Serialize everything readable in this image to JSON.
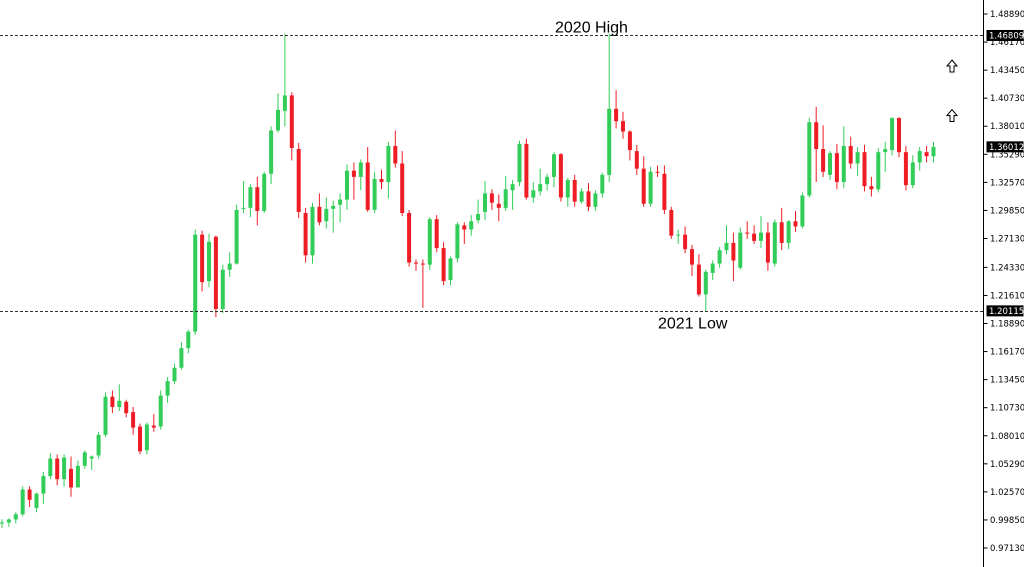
{
  "chart_data": {
    "type": "candlestick",
    "title": "",
    "xlabel": "",
    "ylabel": "",
    "ylim": [
      0.9713,
      1.4889
    ],
    "grid": false,
    "legend": "none",
    "y_ticks": [
      "1.48890",
      "1.46170",
      "1.43450",
      "1.40730",
      "1.38010",
      "1.35290",
      "1.32570",
      "1.29850",
      "1.27130",
      "1.24330",
      "1.21610",
      "1.18890",
      "1.16170",
      "1.13450",
      "1.10730",
      "1.08010",
      "1.05290",
      "1.02570",
      "0.99850",
      "0.97130"
    ],
    "price_tags": [
      {
        "label": "1.46809",
        "value": 1.46809,
        "kind": "level"
      },
      {
        "label": "1.20115",
        "value": 1.20115,
        "kind": "level"
      },
      {
        "label": "1.36012",
        "value": 1.36012,
        "kind": "current"
      }
    ],
    "levels": [
      {
        "value": 1.46809,
        "label": "2020 High",
        "label_position": "above"
      },
      {
        "value": 1.20115,
        "label": "2021 Low",
        "label_position": "below"
      }
    ],
    "markers": [
      {
        "type": "up-arrow",
        "value": 1.4385
      },
      {
        "type": "up-arrow",
        "value": 1.3905
      }
    ],
    "colors": {
      "up": "#32cd58",
      "down": "#ee1c25",
      "level_line": "#333333",
      "axis": "#000000"
    },
    "candles": [
      [
        0.995,
        0.999,
        0.991,
        0.996
      ],
      [
        0.996,
        1.0,
        0.992,
        0.999
      ],
      [
        0.999,
        1.006,
        0.995,
        1.004
      ],
      [
        1.004,
        1.031,
        1.002,
        1.028
      ],
      [
        1.028,
        1.031,
        1.011,
        1.018
      ],
      [
        1.01,
        1.025,
        1.006,
        1.024
      ],
      [
        1.024,
        1.045,
        1.014,
        1.041
      ],
      [
        1.041,
        1.063,
        1.038,
        1.058
      ],
      [
        1.058,
        1.062,
        1.032,
        1.038
      ],
      [
        1.038,
        1.062,
        1.031,
        1.059
      ],
      [
        1.048,
        1.06,
        1.021,
        1.03
      ],
      [
        1.03,
        1.056,
        1.03,
        1.051
      ],
      [
        1.051,
        1.066,
        1.048,
        1.064
      ],
      [
        1.058,
        1.061,
        1.047,
        1.06
      ],
      [
        1.061,
        1.084,
        1.058,
        1.081
      ],
      [
        1.081,
        1.122,
        1.079,
        1.118
      ],
      [
        1.118,
        1.124,
        1.102,
        1.108
      ],
      [
        1.108,
        1.13,
        1.104,
        1.114
      ],
      [
        1.113,
        1.115,
        1.098,
        1.102
      ],
      [
        1.103,
        1.108,
        1.081,
        1.088
      ],
      [
        1.089,
        1.092,
        1.062,
        1.065
      ],
      [
        1.066,
        1.093,
        1.062,
        1.091
      ],
      [
        1.09,
        1.101,
        1.084,
        1.088
      ],
      [
        1.089,
        1.124,
        1.086,
        1.119
      ],
      [
        1.119,
        1.137,
        1.112,
        1.133
      ],
      [
        1.133,
        1.15,
        1.13,
        1.146
      ],
      [
        1.146,
        1.171,
        1.144,
        1.165
      ],
      [
        1.165,
        1.183,
        1.16,
        1.181
      ],
      [
        1.181,
        1.28,
        1.178,
        1.275
      ],
      [
        1.275,
        1.279,
        1.22,
        1.229
      ],
      [
        1.23,
        1.276,
        1.224,
        1.268
      ],
      [
        1.273,
        1.274,
        1.195,
        1.203
      ],
      [
        1.203,
        1.246,
        1.199,
        1.241
      ],
      [
        1.241,
        1.258,
        1.234,
        1.247
      ],
      [
        1.247,
        1.304,
        1.246,
        1.299
      ],
      [
        1.3,
        1.327,
        1.296,
        1.301
      ],
      [
        1.301,
        1.324,
        1.292,
        1.321
      ],
      [
        1.321,
        1.331,
        1.284,
        1.298
      ],
      [
        1.298,
        1.336,
        1.296,
        1.334
      ],
      [
        1.334,
        1.38,
        1.324,
        1.376
      ],
      [
        1.376,
        1.412,
        1.374,
        1.396
      ],
      [
        1.395,
        1.47,
        1.38,
        1.41
      ],
      [
        1.41,
        1.413,
        1.347,
        1.359
      ],
      [
        1.358,
        1.364,
        1.291,
        1.297
      ],
      [
        1.296,
        1.301,
        1.248,
        1.255
      ],
      [
        1.255,
        1.306,
        1.247,
        1.302
      ],
      [
        1.302,
        1.315,
        1.284,
        1.287
      ],
      [
        1.288,
        1.311,
        1.281,
        1.3
      ],
      [
        1.3,
        1.308,
        1.277,
        1.303
      ],
      [
        1.304,
        1.315,
        1.287,
        1.309
      ],
      [
        1.309,
        1.343,
        1.299,
        1.337
      ],
      [
        1.337,
        1.345,
        1.309,
        1.331
      ],
      [
        1.331,
        1.348,
        1.318,
        1.345
      ],
      [
        1.345,
        1.36,
        1.297,
        1.299
      ],
      [
        1.299,
        1.336,
        1.296,
        1.329
      ],
      [
        1.329,
        1.338,
        1.319,
        1.326
      ],
      [
        1.326,
        1.365,
        1.31,
        1.361
      ],
      [
        1.361,
        1.376,
        1.34,
        1.344
      ],
      [
        1.344,
        1.356,
        1.293,
        1.296
      ],
      [
        1.296,
        1.299,
        1.244,
        1.248
      ],
      [
        1.248,
        1.251,
        1.24,
        1.247
      ],
      [
        1.247,
        1.251,
        1.204,
        1.246
      ],
      [
        1.246,
        1.292,
        1.241,
        1.29
      ],
      [
        1.29,
        1.294,
        1.258,
        1.262
      ],
      [
        1.262,
        1.268,
        1.226,
        1.23
      ],
      [
        1.231,
        1.254,
        1.226,
        1.252
      ],
      [
        1.252,
        1.287,
        1.248,
        1.285
      ],
      [
        1.284,
        1.287,
        1.266,
        1.28
      ],
      [
        1.28,
        1.294,
        1.274,
        1.288
      ],
      [
        1.289,
        1.309,
        1.286,
        1.295
      ],
      [
        1.297,
        1.327,
        1.289,
        1.315
      ],
      [
        1.315,
        1.319,
        1.299,
        1.306
      ],
      [
        1.305,
        1.314,
        1.288,
        1.301
      ],
      [
        1.301,
        1.332,
        1.298,
        1.319
      ],
      [
        1.318,
        1.328,
        1.299,
        1.324
      ],
      [
        1.326,
        1.366,
        1.322,
        1.363
      ],
      [
        1.363,
        1.368,
        1.309,
        1.311
      ],
      [
        1.311,
        1.326,
        1.306,
        1.318
      ],
      [
        1.317,
        1.339,
        1.313,
        1.324
      ],
      [
        1.324,
        1.334,
        1.318,
        1.331
      ],
      [
        1.331,
        1.355,
        1.321,
        1.353
      ],
      [
        1.353,
        1.354,
        1.307,
        1.311
      ],
      [
        1.311,
        1.33,
        1.302,
        1.328
      ],
      [
        1.328,
        1.333,
        1.302,
        1.307
      ],
      [
        1.307,
        1.32,
        1.305,
        1.317
      ],
      [
        1.317,
        1.325,
        1.298,
        1.302
      ],
      [
        1.302,
        1.318,
        1.298,
        1.315
      ],
      [
        1.315,
        1.335,
        1.311,
        1.333
      ],
      [
        1.333,
        1.47,
        1.326,
        1.397
      ],
      [
        1.397,
        1.415,
        1.378,
        1.385
      ],
      [
        1.385,
        1.394,
        1.368,
        1.375
      ],
      [
        1.375,
        1.376,
        1.347,
        1.357
      ],
      [
        1.356,
        1.362,
        1.333,
        1.339
      ],
      [
        1.339,
        1.351,
        1.302,
        1.305
      ],
      [
        1.305,
        1.341,
        1.302,
        1.336
      ],
      [
        1.336,
        1.342,
        1.331,
        1.335
      ],
      [
        1.334,
        1.342,
        1.295,
        1.299
      ],
      [
        1.299,
        1.302,
        1.271,
        1.274
      ],
      [
        1.274,
        1.28,
        1.266,
        1.275
      ],
      [
        1.275,
        1.283,
        1.257,
        1.261
      ],
      [
        1.261,
        1.265,
        1.235,
        1.246
      ],
      [
        1.246,
        1.256,
        1.215,
        1.217
      ],
      [
        1.217,
        1.241,
        1.201,
        1.239
      ],
      [
        1.238,
        1.25,
        1.231,
        1.247
      ],
      [
        1.247,
        1.263,
        1.243,
        1.26
      ],
      [
        1.26,
        1.284,
        1.256,
        1.267
      ],
      [
        1.267,
        1.277,
        1.23,
        1.25
      ],
      [
        1.243,
        1.282,
        1.241,
        1.277
      ],
      [
        1.277,
        1.288,
        1.271,
        1.276
      ],
      [
        1.276,
        1.284,
        1.266,
        1.269
      ],
      [
        1.269,
        1.293,
        1.262,
        1.277
      ],
      [
        1.277,
        1.287,
        1.24,
        1.248
      ],
      [
        1.247,
        1.29,
        1.244,
        1.287
      ],
      [
        1.287,
        1.301,
        1.26,
        1.267
      ],
      [
        1.267,
        1.289,
        1.261,
        1.288
      ],
      [
        1.288,
        1.298,
        1.278,
        1.283
      ],
      [
        1.283,
        1.316,
        1.281,
        1.313
      ],
      [
        1.313,
        1.388,
        1.311,
        1.384
      ],
      [
        1.384,
        1.399,
        1.326,
        1.358
      ],
      [
        1.358,
        1.381,
        1.331,
        1.336
      ],
      [
        1.333,
        1.356,
        1.328,
        1.354
      ],
      [
        1.354,
        1.363,
        1.319,
        1.326
      ],
      [
        1.326,
        1.38,
        1.32,
        1.361
      ],
      [
        1.361,
        1.37,
        1.339,
        1.344
      ],
      [
        1.344,
        1.36,
        1.332,
        1.355
      ],
      [
        1.355,
        1.362,
        1.317,
        1.322
      ],
      [
        1.322,
        1.331,
        1.312,
        1.319
      ],
      [
        1.319,
        1.359,
        1.316,
        1.355
      ],
      [
        1.355,
        1.365,
        1.336,
        1.358
      ],
      [
        1.357,
        1.389,
        1.352,
        1.388
      ],
      [
        1.388,
        1.389,
        1.35,
        1.355
      ],
      [
        1.355,
        1.361,
        1.318,
        1.323
      ],
      [
        1.323,
        1.352,
        1.32,
        1.345
      ],
      [
        1.345,
        1.36,
        1.337,
        1.356
      ],
      [
        1.355,
        1.361,
        1.345,
        1.351
      ],
      [
        1.351,
        1.365,
        1.345,
        1.3601
      ]
    ]
  }
}
